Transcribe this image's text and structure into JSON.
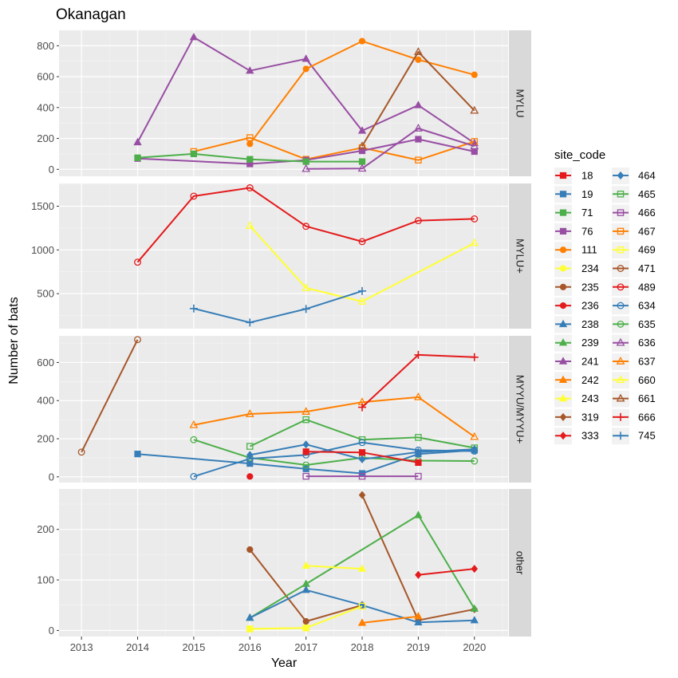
{
  "chart_data": {
    "type": "line",
    "title": "Okanagan",
    "xlabel": "Year",
    "ylabel": "Number of bats",
    "x_ticks": [
      2013,
      2014,
      2015,
      2016,
      2017,
      2018,
      2019,
      2020
    ],
    "xlim": [
      2012.6,
      2020.6
    ],
    "legend": {
      "title": "site_code",
      "placement": "right",
      "entries": [
        {
          "code": "18",
          "color": "#E41A1C",
          "shape": "square"
        },
        {
          "code": "19",
          "color": "#377EB8",
          "shape": "square"
        },
        {
          "code": "71",
          "color": "#4DAF4A",
          "shape": "square"
        },
        {
          "code": "76",
          "color": "#984EA3",
          "shape": "square"
        },
        {
          "code": "111",
          "color": "#FF7F00",
          "shape": "circle"
        },
        {
          "code": "234",
          "color": "#FFFF33",
          "shape": "circle"
        },
        {
          "code": "235",
          "color": "#A65628",
          "shape": "circle"
        },
        {
          "code": "236",
          "color": "#E41A1C",
          "shape": "circle"
        },
        {
          "code": "238",
          "color": "#377EB8",
          "shape": "triangle"
        },
        {
          "code": "239",
          "color": "#4DAF4A",
          "shape": "triangle"
        },
        {
          "code": "241",
          "color": "#984EA3",
          "shape": "triangle"
        },
        {
          "code": "242",
          "color": "#FF7F00",
          "shape": "triangle"
        },
        {
          "code": "243",
          "color": "#FFFF33",
          "shape": "triangle"
        },
        {
          "code": "319",
          "color": "#A65628",
          "shape": "diamond"
        },
        {
          "code": "333",
          "color": "#E41A1C",
          "shape": "diamond"
        },
        {
          "code": "464",
          "color": "#377EB8",
          "shape": "diamond"
        },
        {
          "code": "465",
          "color": "#4DAF4A",
          "shape": "square-open"
        },
        {
          "code": "466",
          "color": "#984EA3",
          "shape": "square-open"
        },
        {
          "code": "467",
          "color": "#FF7F00",
          "shape": "square-open"
        },
        {
          "code": "469",
          "color": "#FFFF33",
          "shape": "square-open"
        },
        {
          "code": "471",
          "color": "#A65628",
          "shape": "circle-open"
        },
        {
          "code": "489",
          "color": "#E41A1C",
          "shape": "circle-open"
        },
        {
          "code": "634",
          "color": "#377EB8",
          "shape": "circle-open"
        },
        {
          "code": "635",
          "color": "#4DAF4A",
          "shape": "circle-open"
        },
        {
          "code": "636",
          "color": "#984EA3",
          "shape": "triangle-open"
        },
        {
          "code": "637",
          "color": "#FF7F00",
          "shape": "triangle-open"
        },
        {
          "code": "660",
          "color": "#FFFF33",
          "shape": "triangle-open"
        },
        {
          "code": "661",
          "color": "#A65628",
          "shape": "triangle-open"
        },
        {
          "code": "666",
          "color": "#E41A1C",
          "shape": "plus"
        },
        {
          "code": "745",
          "color": "#377EB8",
          "shape": "plus"
        }
      ]
    },
    "panels": [
      {
        "strip": "MYLU",
        "ylim": [
          -45,
          900
        ],
        "y_ticks": [
          0,
          200,
          400,
          600,
          800
        ],
        "series": [
          {
            "code": "241",
            "points": [
              [
                2014,
                175
              ],
              [
                2015,
                855
              ],
              [
                2016,
                638
              ],
              [
                2017,
                715
              ],
              [
                2018,
                250
              ],
              [
                2019,
                415
              ],
              [
                2020,
                170
              ]
            ]
          },
          {
            "code": "111",
            "points": [
              [
                2016,
                165
              ],
              [
                2017,
                650
              ],
              [
                2018,
                830
              ],
              [
                2019,
                710
              ],
              [
                2020,
                612
              ]
            ]
          },
          {
            "code": "467",
            "points": [
              [
                2015,
                115
              ],
              [
                2016,
                205
              ],
              [
                2017,
                65
              ],
              [
                2018,
                140
              ],
              [
                2019,
                60
              ],
              [
                2020,
                180
              ]
            ]
          },
          {
            "code": "76",
            "points": [
              [
                2014,
                70
              ],
              [
                2016,
                35
              ],
              [
                2017,
                60
              ],
              [
                2018,
                120
              ],
              [
                2019,
                195
              ],
              [
                2020,
                115
              ]
            ]
          },
          {
            "code": "71",
            "points": [
              [
                2014,
                75
              ],
              [
                2015,
                100
              ],
              [
                2016,
                65
              ],
              [
                2017,
                50
              ],
              [
                2018,
                50
              ]
            ]
          },
          {
            "code": "661",
            "points": [
              [
                2018,
                150
              ],
              [
                2019,
                760
              ],
              [
                2020,
                380
              ]
            ]
          },
          {
            "code": "636",
            "points": [
              [
                2017,
                3
              ],
              [
                2018,
                5
              ],
              [
                2019,
                265
              ],
              [
                2020,
                150
              ]
            ]
          }
        ]
      },
      {
        "strip": "MYLU+",
        "ylim": [
          100,
          1760
        ],
        "y_ticks": [
          500,
          1000,
          1500
        ],
        "series": [
          {
            "code": "489",
            "points": [
              [
                2014,
                860
              ],
              [
                2015,
                1615
              ],
              [
                2016,
                1710
              ],
              [
                2017,
                1270
              ],
              [
                2018,
                1095
              ],
              [
                2019,
                1335
              ],
              [
                2020,
                1355
              ]
            ]
          },
          {
            "code": "660",
            "points": [
              [
                2016,
                1275
              ],
              [
                2017,
                565
              ],
              [
                2018,
                410
              ],
              [
                2020,
                1080
              ]
            ]
          },
          {
            "code": "745",
            "points": [
              [
                2015,
                330
              ],
              [
                2016,
                170
              ],
              [
                2017,
                325
              ],
              [
                2018,
                530
              ]
            ]
          }
        ]
      },
      {
        "strip": "MYYU/MYYU+",
        "ylim": [
          -30,
          740
        ],
        "y_ticks": [
          0,
          200,
          400,
          600
        ],
        "series": [
          {
            "code": "471",
            "points": [
              [
                2013,
                130
              ],
              [
                2014,
                720
              ]
            ]
          },
          {
            "code": "19",
            "points": [
              [
                2014,
                120
              ],
              [
                2016,
                70
              ],
              [
                2017,
                42
              ],
              [
                2018,
                18
              ],
              [
                2019,
                120
              ],
              [
                2020,
                140
              ]
            ]
          },
          {
            "code": "637",
            "points": [
              [
                2015,
                272
              ],
              [
                2016,
                330
              ],
              [
                2017,
                342
              ],
              [
                2018,
                392
              ],
              [
                2019,
                418
              ],
              [
                2020,
                210
              ]
            ]
          },
          {
            "code": "635",
            "points": [
              [
                2015,
                195
              ],
              [
                2016,
                100
              ],
              [
                2017,
                62
              ],
              [
                2018,
                100
              ],
              [
                2019,
                85
              ],
              [
                2020,
                83
              ]
            ]
          },
          {
            "code": "465",
            "points": [
              [
                2016,
                160
              ],
              [
                2017,
                300
              ],
              [
                2018,
                195
              ],
              [
                2019,
                207
              ],
              [
                2020,
                152
              ]
            ]
          },
          {
            "code": "634",
            "points": [
              [
                2015,
                2
              ],
              [
                2016,
                95
              ],
              [
                2017,
                115
              ],
              [
                2018,
                180
              ],
              [
                2019,
                140
              ],
              [
                2020,
                135
              ]
            ]
          },
          {
            "code": "464",
            "points": [
              [
                2016,
                115
              ],
              [
                2017,
                170
              ],
              [
                2018,
                92
              ],
              [
                2019,
                130
              ],
              [
                2020,
                145
              ]
            ]
          },
          {
            "code": "18",
            "points": [
              [
                2017,
                132
              ],
              [
                2018,
                128
              ],
              [
                2019,
                75
              ]
            ]
          },
          {
            "code": "666",
            "points": [
              [
                2018,
                365
              ],
              [
                2019,
                640
              ],
              [
                2020,
                628
              ]
            ]
          },
          {
            "code": "466",
            "points": [
              [
                2017,
                3
              ],
              [
                2018,
                3
              ],
              [
                2019,
                3
              ]
            ]
          },
          {
            "code": "236",
            "points": [
              [
                2016,
                2
              ]
            ]
          }
        ]
      },
      {
        "strip": "other",
        "ylim": [
          -12,
          280
        ],
        "y_ticks": [
          0,
          100,
          200
        ],
        "series": [
          {
            "code": "319",
            "points": [
              [
                2018,
                268
              ],
              [
                2019,
                20
              ],
              [
                2020,
                42
              ]
            ]
          },
          {
            "code": "235",
            "points": [
              [
                2016,
                160
              ],
              [
                2017,
                18
              ],
              [
                2018,
                50
              ]
            ]
          },
          {
            "code": "239",
            "points": [
              [
                2016,
                25
              ],
              [
                2017,
                92
              ],
              [
                2019,
                228
              ],
              [
                2020,
                43
              ]
            ]
          },
          {
            "code": "333",
            "points": [
              [
                2019,
                110
              ],
              [
                2020,
                122
              ]
            ]
          },
          {
            "code": "243",
            "points": [
              [
                2017,
                128
              ],
              [
                2018,
                122
              ]
            ]
          },
          {
            "code": "238",
            "points": [
              [
                2016,
                25
              ],
              [
                2017,
                80
              ],
              [
                2018,
                50
              ],
              [
                2019,
                16
              ],
              [
                2020,
                20
              ]
            ]
          },
          {
            "code": "242",
            "points": [
              [
                2018,
                15
              ],
              [
                2019,
                28
              ]
            ]
          },
          {
            "code": "469",
            "points": [
              [
                2016,
                3
              ],
              [
                2017,
                5
              ],
              [
                2018,
                48
              ]
            ]
          },
          {
            "code": "234",
            "points": [
              [
                2016,
                3
              ],
              [
                2017,
                5
              ]
            ]
          }
        ]
      }
    ]
  }
}
